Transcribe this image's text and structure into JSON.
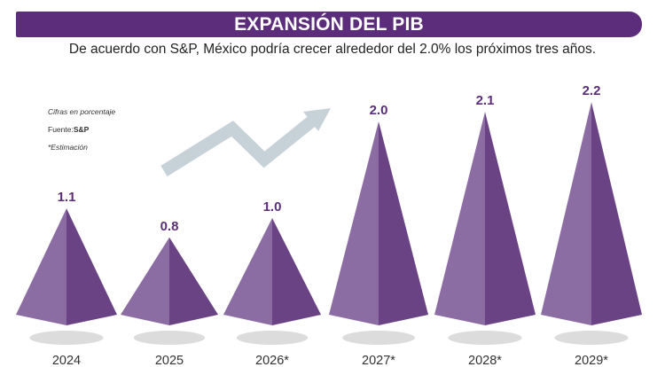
{
  "header": {
    "title": "EXPANSIÓN DEL PIB",
    "subtitle": "De acuerdo con S&P, México podría crecer alrededor del 2.0% los próximos tres años."
  },
  "notes": {
    "units": "Cifras en porcentaje",
    "source_label": "Fuente:",
    "source_value": "S&P",
    "estimate": "*Estimación"
  },
  "colors": {
    "title_bar": "#5b2d7a",
    "pyramid_light": "#8b6ca3",
    "pyramid_dark": "#6a4384",
    "value_label": "#5b2d7a",
    "shadow": "#dcdcdc",
    "arrow": "#c7d1d8"
  },
  "chart_data": {
    "type": "bar",
    "mark": "pyramid",
    "categories": [
      "2024",
      "2025",
      "2026*",
      "2027*",
      "2028*",
      "2029*"
    ],
    "values": [
      1.1,
      0.8,
      1.0,
      2.0,
      2.1,
      2.2
    ],
    "value_labels": [
      "1.1",
      "0.8",
      "1.0",
      "2.0",
      "2.1",
      "2.2"
    ],
    "title": "EXPANSIÓN DEL PIB",
    "xlabel": "",
    "ylabel": "",
    "grid": false,
    "legend": "none",
    "decoration": "trend-arrow"
  }
}
